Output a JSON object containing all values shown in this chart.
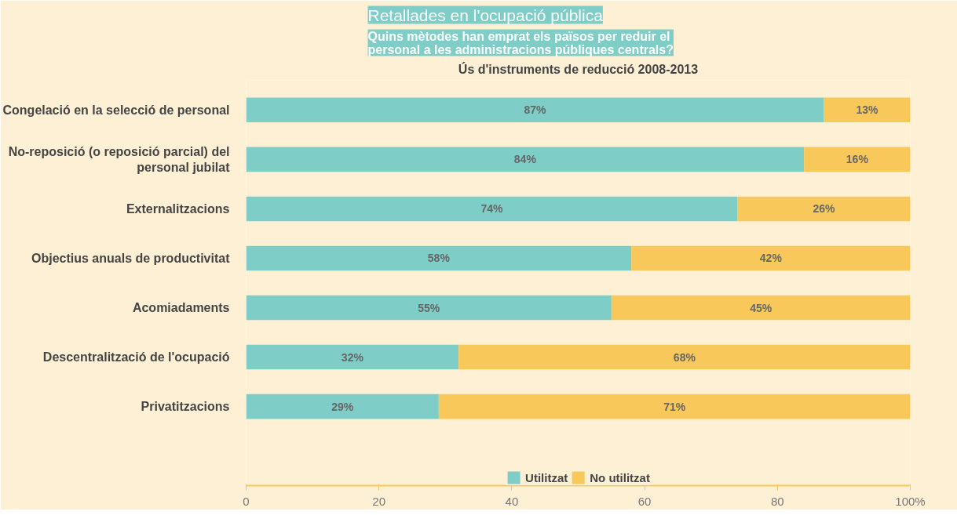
{
  "chart_data": {
    "type": "bar",
    "orientation": "horizontal",
    "stacked": true,
    "title": "Retallades en l'ocupació pública",
    "subtitle": "Quins mètodes han emprat els països per reduir el personal a les administracions públiques centrals?",
    "annotations": [
      "Ús d'instruments de reducció 2008-2013"
    ],
    "categories": [
      "Congelació en la selecció de personal",
      "No-reposició (o reposició parcial) del personal jubilat",
      "Externalitzacions",
      "Objectius anuals de productivitat",
      "Acomiadaments",
      "Descentralització de l'ocupació",
      "Privatitzacions"
    ],
    "series": [
      {
        "name": "Utilitzat",
        "color": "#7ecdc7",
        "values": [
          87,
          84,
          74,
          58,
          55,
          32,
          29
        ],
        "value_labels": [
          "87%",
          "84%",
          "74%",
          "58%",
          "55%",
          "32%",
          "29%"
        ]
      },
      {
        "name": "No utilitzat",
        "color": "#f8c95a",
        "values": [
          13,
          16,
          26,
          42,
          45,
          68,
          71
        ],
        "value_labels": [
          "13%",
          "16%",
          "26%",
          "42%",
          "45%",
          "68%",
          "71%"
        ]
      }
    ],
    "xlim": [
      0,
      100
    ],
    "xticks": [
      0,
      20,
      40,
      60,
      80,
      {
        "value": 100,
        "label": "100%"
      }
    ],
    "legend": "bottom",
    "grid": false
  }
}
